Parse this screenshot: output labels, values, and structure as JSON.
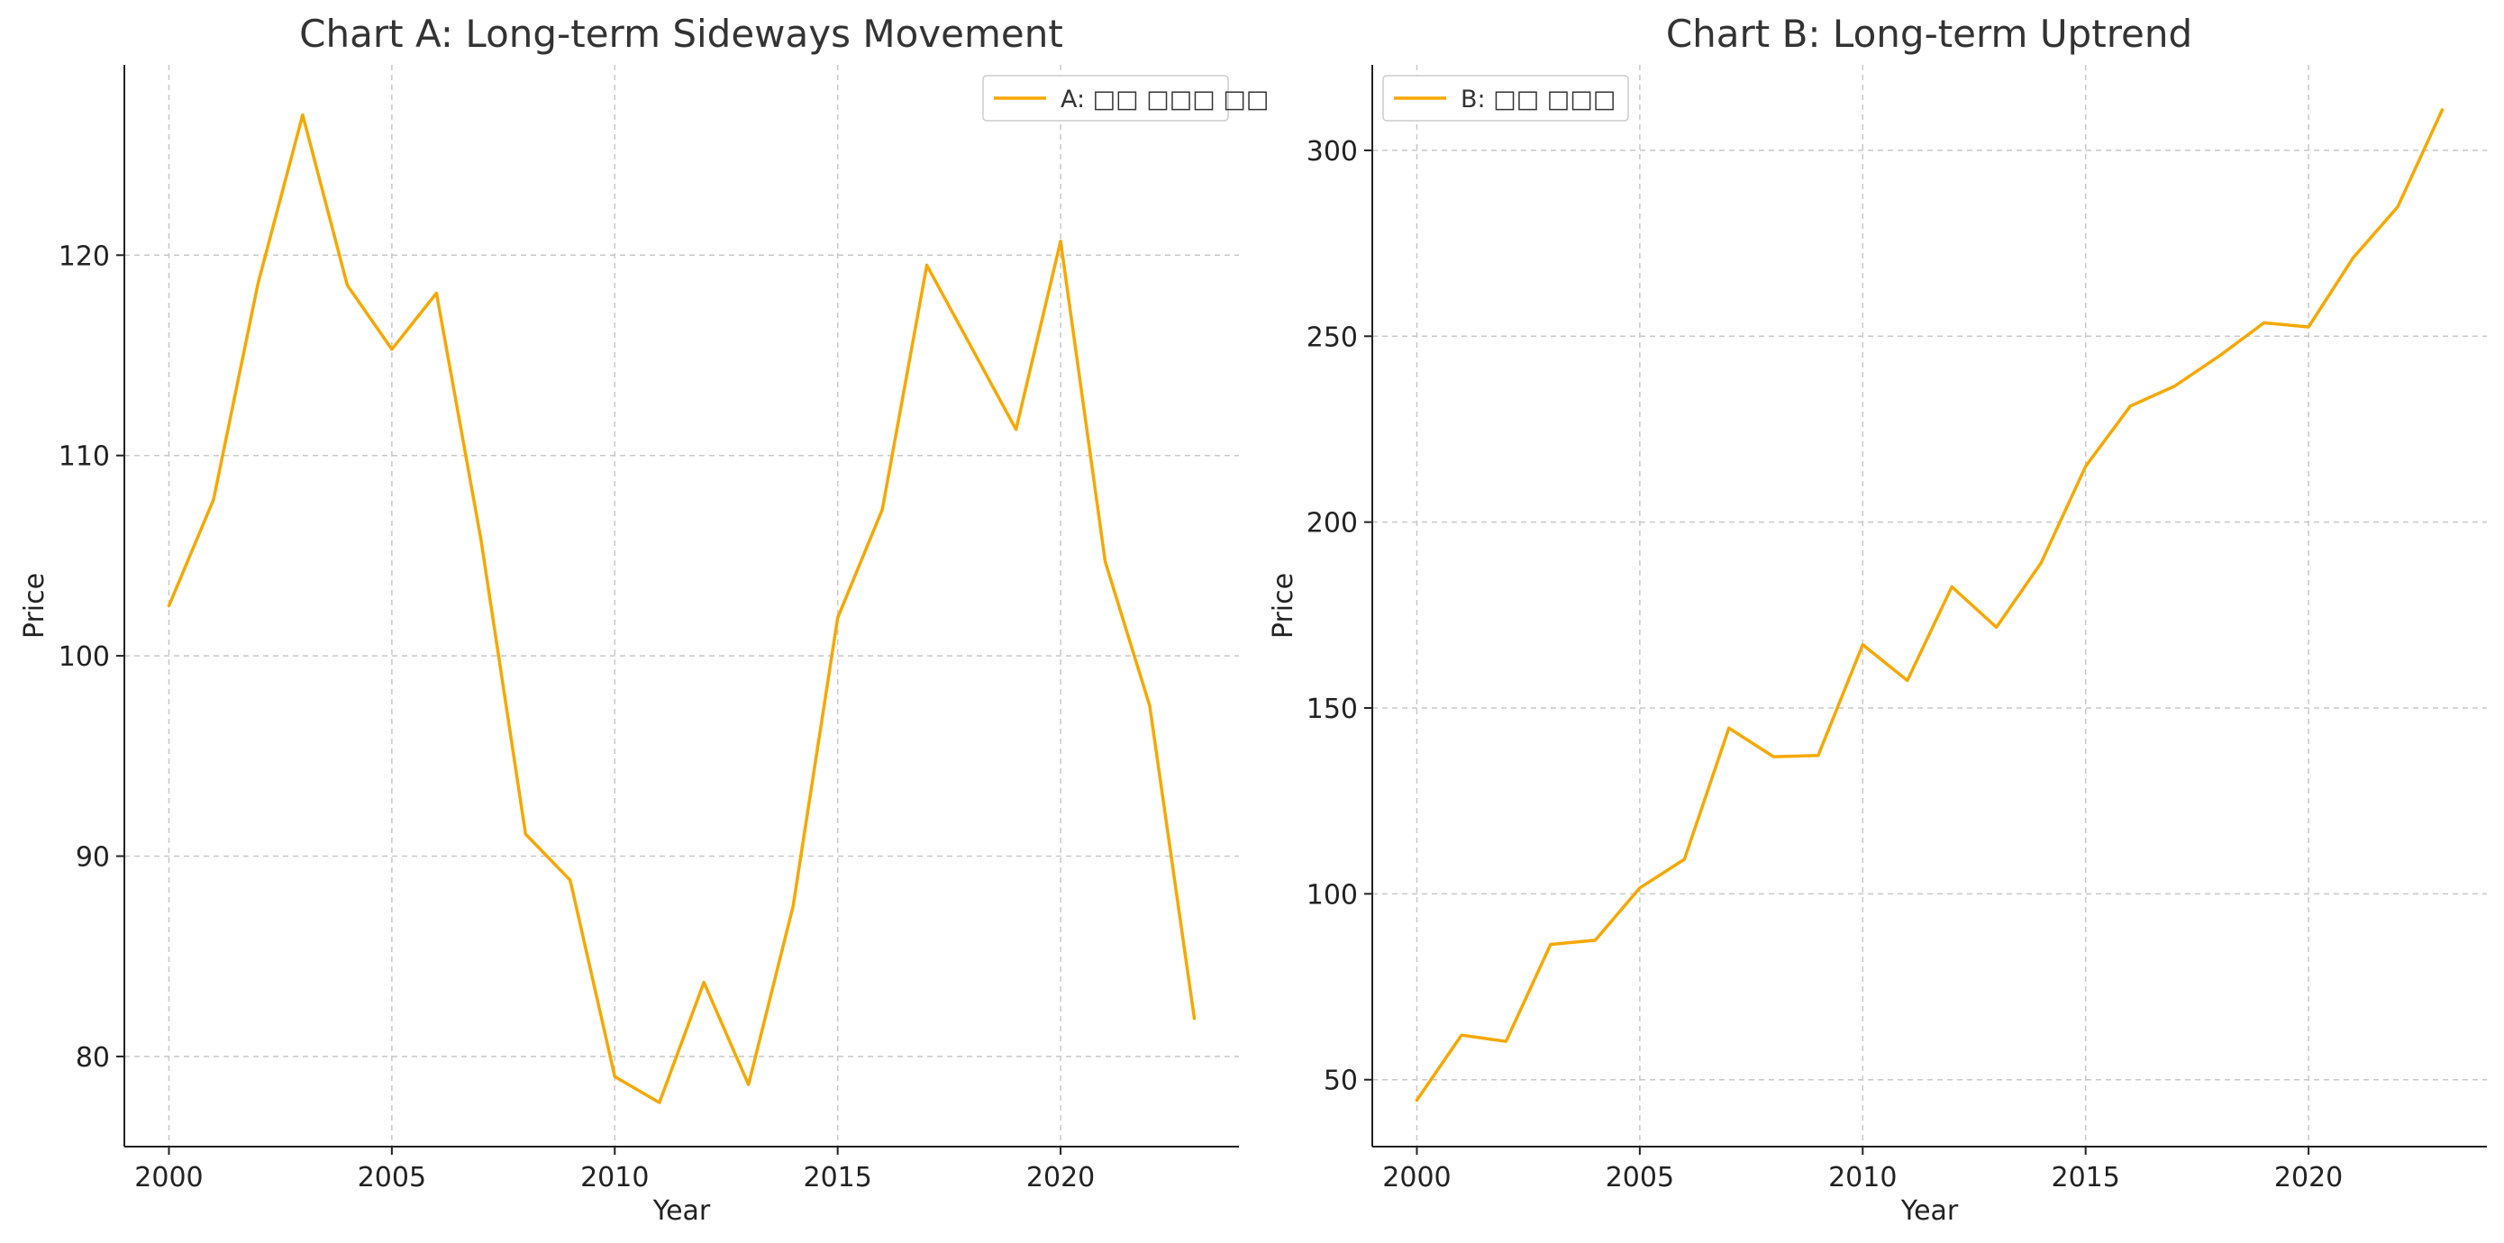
{
  "accent_color": "#F5A800",
  "chart_data": [
    {
      "type": "line",
      "title": "Chart A: Long-term Sideways Movement",
      "xlabel": "Year",
      "ylabel": "Price",
      "xlim": [
        1999,
        2024
      ],
      "ylim": [
        75.5,
        129.5
      ],
      "x_ticks": [
        2000,
        2005,
        2010,
        2015,
        2020
      ],
      "y_ticks": [
        80,
        90,
        100,
        110,
        120
      ],
      "grid": true,
      "legend_position": "top-right",
      "series": [
        {
          "name": "A: □□ □□□ □□",
          "color": "#F5A800",
          "x": [
            2000,
            2001,
            2002,
            2003,
            2004,
            2005,
            2006,
            2007,
            2008,
            2009,
            2010,
            2011,
            2012,
            2013,
            2014,
            2015,
            2016,
            2017,
            2018,
            2019,
            2020,
            2021,
            2022,
            2023
          ],
          "y": [
            102.5,
            107.8,
            118.6,
            127.0,
            118.5,
            115.3,
            118.1,
            105.8,
            91.1,
            88.8,
            79.0,
            77.7,
            83.7,
            78.6,
            87.5,
            101.9,
            107.3,
            119.5,
            115.4,
            111.3,
            120.7,
            104.7,
            97.5,
            81.9
          ]
        }
      ]
    },
    {
      "type": "line",
      "title": "Chart B: Long-term Uptrend",
      "xlabel": "Year",
      "ylabel": "Price",
      "xlim": [
        1999,
        2024
      ],
      "ylim": [
        32,
        323
      ],
      "x_ticks": [
        2000,
        2005,
        2010,
        2015,
        2020
      ],
      "y_ticks": [
        50,
        100,
        150,
        200,
        250,
        300
      ],
      "grid": true,
      "legend_position": "top-left",
      "series": [
        {
          "name": "B: □□ □□□",
          "color": "#F5A800",
          "x": [
            2000,
            2001,
            2002,
            2003,
            2004,
            2005,
            2006,
            2007,
            2008,
            2009,
            2010,
            2011,
            2012,
            2013,
            2014,
            2015,
            2016,
            2017,
            2018,
            2019,
            2020,
            2021,
            2022,
            2023
          ],
          "y": [
            44.5,
            62.0,
            60.3,
            86.4,
            87.5,
            101.6,
            109.3,
            144.6,
            136.9,
            137.2,
            167.0,
            157.4,
            182.6,
            171.7,
            189.0,
            215.0,
            231.2,
            236.6,
            244.7,
            253.6,
            252.5,
            271.1,
            284.8,
            310.9
          ]
        }
      ]
    }
  ]
}
